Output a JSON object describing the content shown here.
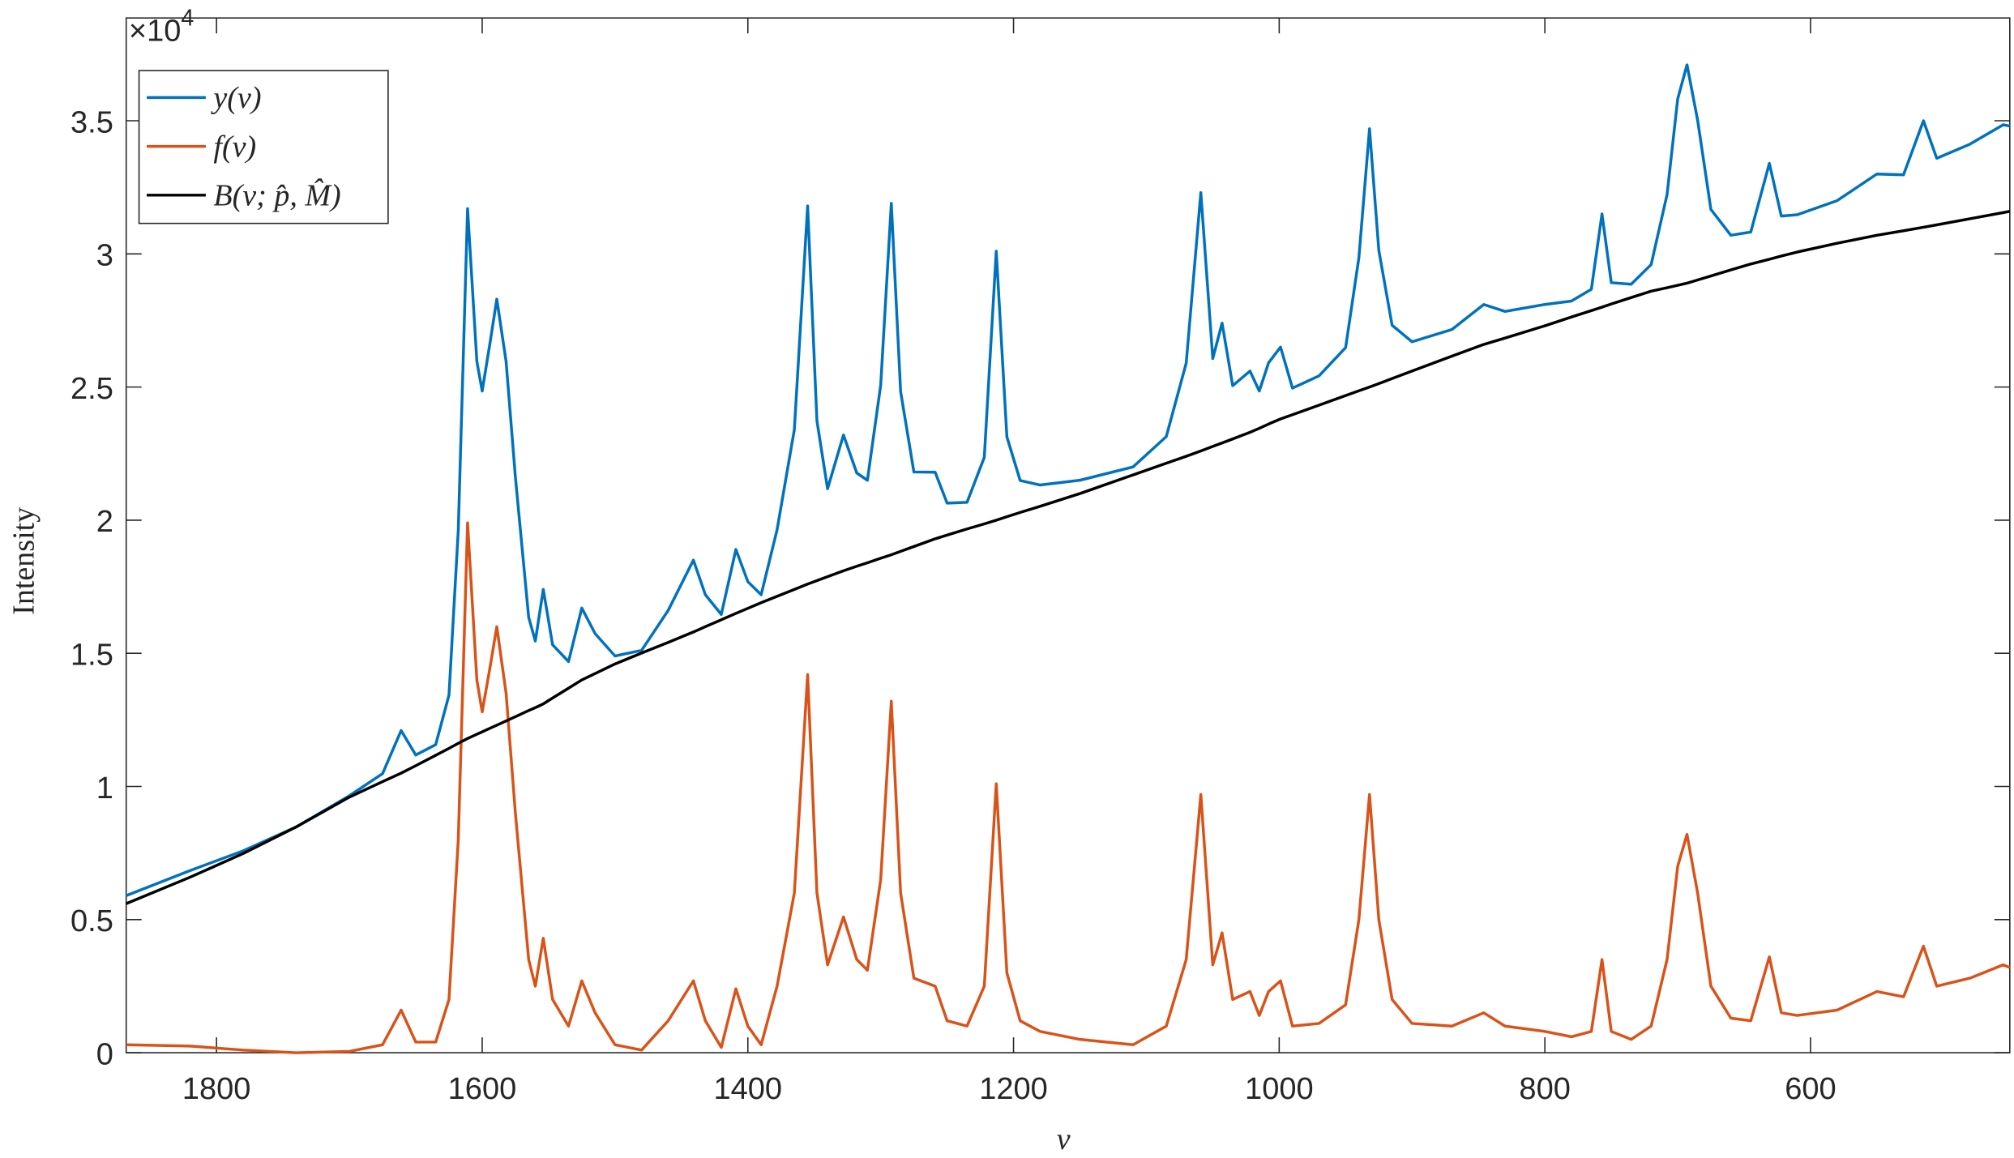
{
  "chart_data": {
    "type": "line",
    "x_label": "ν",
    "y_label": "Intensity",
    "y_multiplier_base": "×10",
    "y_multiplier_exp": "4",
    "xlim": [
      1868,
      450
    ],
    "xticks": [
      1800,
      1600,
      1400,
      1200,
      1000,
      800,
      600
    ],
    "ylim": [
      0,
      38860
    ],
    "yticks": [
      0,
      {
        "value": 5000,
        "label": "0.5"
      },
      {
        "value": 10000,
        "label": "1"
      },
      {
        "value": 15000,
        "label": "1.5"
      },
      {
        "value": 20000,
        "label": "2"
      },
      {
        "value": 25000,
        "label": "2.5"
      },
      {
        "value": 30000,
        "label": "3"
      },
      {
        "value": 35000,
        "label": "3.5"
      }
    ],
    "legend_position": "upper-left",
    "x": [
      1868,
      1820,
      1780,
      1740,
      1700,
      1675,
      1661,
      1650,
      1635,
      1625,
      1618,
      1611,
      1604,
      1600,
      1594,
      1589,
      1582,
      1575,
      1565,
      1560,
      1554,
      1547,
      1535,
      1525,
      1515,
      1500,
      1480,
      1460,
      1441,
      1432,
      1420,
      1409,
      1400,
      1390,
      1378,
      1365,
      1355,
      1348,
      1340,
      1328,
      1318,
      1310,
      1300,
      1292,
      1285,
      1275,
      1259,
      1250,
      1235,
      1222,
      1213,
      1205,
      1195,
      1180,
      1150,
      1110,
      1085,
      1070,
      1059,
      1050,
      1043,
      1035,
      1022,
      1015,
      1008,
      999,
      990,
      970,
      950,
      940,
      932,
      925,
      915,
      900,
      870,
      846,
      830,
      800,
      780,
      765,
      757,
      750,
      735,
      720,
      708,
      700,
      693,
      685,
      675,
      660,
      645,
      631,
      622,
      610,
      580,
      550,
      530,
      515,
      505,
      480,
      455,
      450
    ],
    "series": [
      {
        "name": "y(ν)",
        "color": "#0072BD",
        "values": [
          5900,
          6840,
          7580,
          8480,
          9650,
          10480,
          12100,
          11180,
          11570,
          13430,
          19620,
          31700,
          25960,
          24850,
          26690,
          28300,
          25960,
          21620,
          16350,
          15460,
          17400,
          15320,
          14690,
          16700,
          15740,
          14900,
          15110,
          16610,
          18500,
          17200,
          16460,
          18900,
          17690,
          17200,
          19640,
          23400,
          31800,
          23730,
          21180,
          23200,
          21770,
          21500,
          25070,
          31900,
          24830,
          21810,
          21800,
          20640,
          20670,
          22360,
          30100,
          23130,
          21490,
          21320,
          21500,
          22000,
          23140,
          25900,
          32300,
          26070,
          27400,
          25050,
          25600,
          24850,
          25910,
          26500,
          24960,
          25420,
          26480,
          29860,
          34700,
          30130,
          27320,
          26700,
          27160,
          28100,
          27840,
          28100,
          28230,
          28670,
          31500,
          28920,
          28860,
          29600,
          32230,
          35820,
          37100,
          35020,
          31670,
          30700,
          30820,
          33400,
          31420,
          31470,
          32000,
          33000,
          32970,
          35000,
          33590,
          34120,
          34850,
          34800
        ]
      },
      {
        "name": "f(ν)",
        "color": "#D95319",
        "values": [
          300,
          250,
          100,
          0,
          50,
          300,
          1600,
          400,
          400,
          2000,
          8000,
          19900,
          14000,
          12800,
          14500,
          16000,
          13500,
          9000,
          3500,
          2500,
          4300,
          2000,
          1000,
          2700,
          1500,
          300,
          100,
          1200,
          2700,
          1200,
          200,
          2400,
          1000,
          300,
          2500,
          6000,
          14200,
          6000,
          3300,
          5100,
          3500,
          3100,
          6500,
          13200,
          6000,
          2800,
          2500,
          1200,
          1000,
          2500,
          10100,
          3000,
          1200,
          800,
          500,
          300,
          1000,
          3500,
          9700,
          3300,
          4500,
          2000,
          2300,
          1400,
          2300,
          2700,
          1000,
          1100,
          1800,
          5000,
          9700,
          5000,
          2000,
          1100,
          1000,
          1500,
          1000,
          800,
          600,
          800,
          3500,
          800,
          500,
          1000,
          3500,
          7000,
          8200,
          6000,
          2500,
          1300,
          1200,
          3600,
          1500,
          1400,
          1600,
          2300,
          2100,
          4000,
          2500,
          2800,
          3300,
          3200
        ]
      },
      {
        "name": "B(ν; p̂, M̂)",
        "color": "#000000",
        "values": [
          5600,
          6590,
          7480,
          8480,
          9600,
          10180,
          10500,
          10780,
          11170,
          11430,
          11620,
          11800,
          11960,
          12050,
          12190,
          12300,
          12460,
          12620,
          12850,
          12960,
          13100,
          13320,
          13690,
          14000,
          14240,
          14600,
          15010,
          15410,
          15800,
          16000,
          16260,
          16500,
          16690,
          16900,
          17140,
          17400,
          17600,
          17730,
          17880,
          18100,
          18270,
          18400,
          18570,
          18700,
          18830,
          19010,
          19300,
          19440,
          19670,
          19860,
          20000,
          20130,
          20290,
          20520,
          21000,
          21700,
          22140,
          22400,
          22600,
          22770,
          22900,
          23050,
          23300,
          23450,
          23610,
          23800,
          23960,
          24320,
          24680,
          24860,
          25000,
          25130,
          25320,
          25600,
          26160,
          26600,
          26840,
          27300,
          27630,
          27870,
          28000,
          28120,
          28360,
          28600,
          28730,
          28820,
          28900,
          29020,
          29170,
          29400,
          29620,
          29800,
          29920,
          30070,
          30400,
          30700,
          30870,
          31000,
          31090,
          31320,
          31550,
          31600
        ]
      }
    ]
  }
}
